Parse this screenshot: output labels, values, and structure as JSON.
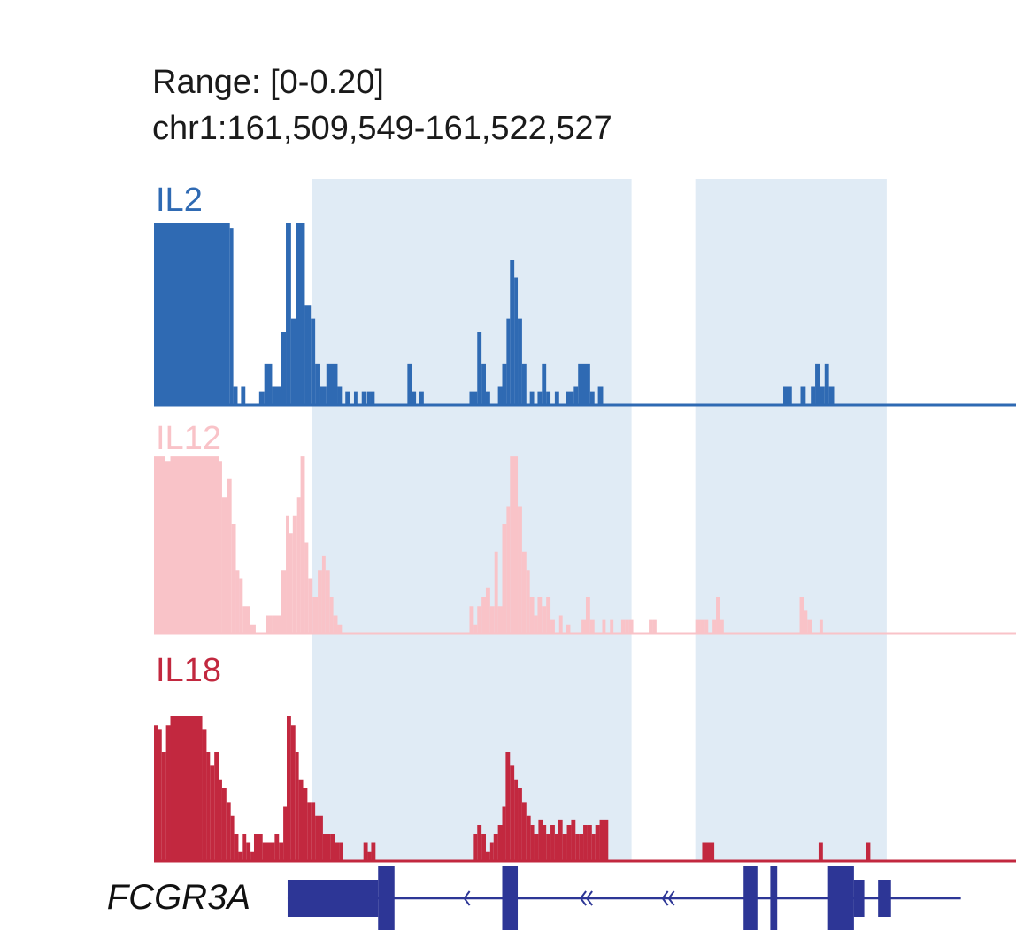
{
  "chart_data": {
    "type": "bar",
    "subtype": "genome-browser-coverage-tracks",
    "range_label": "Range: [0-0.20]",
    "locus_label": "chr1:161,509,549-161,522,527",
    "ylim": [
      0,
      0.2
    ],
    "highlight_regions": [
      [
        0.183,
        0.554
      ],
      [
        0.628,
        0.85
      ]
    ],
    "tracks": [
      {
        "name": "IL2",
        "color": "#2f6ab3",
        "bins": [
          [
            0.0,
            0.088,
            0.2
          ],
          [
            0.088,
            0.092,
            0.195
          ],
          [
            0.092,
            0.097,
            0.02
          ],
          [
            0.101,
            0.106,
            0.02
          ],
          [
            0.122,
            0.128,
            0.015
          ],
          [
            0.128,
            0.137,
            0.045
          ],
          [
            0.137,
            0.147,
            0.02
          ],
          [
            0.147,
            0.153,
            0.08
          ],
          [
            0.153,
            0.159,
            0.2
          ],
          [
            0.159,
            0.165,
            0.095
          ],
          [
            0.165,
            0.175,
            0.2
          ],
          [
            0.175,
            0.182,
            0.11
          ],
          [
            0.182,
            0.187,
            0.095
          ],
          [
            0.187,
            0.193,
            0.045
          ],
          [
            0.193,
            0.2,
            0.02
          ],
          [
            0.2,
            0.213,
            0.045
          ],
          [
            0.213,
            0.218,
            0.02
          ],
          [
            0.222,
            0.227,
            0.015
          ],
          [
            0.232,
            0.236,
            0.015
          ],
          [
            0.241,
            0.246,
            0.015
          ],
          [
            0.247,
            0.251,
            0.015
          ],
          [
            0.251,
            0.256,
            0.015
          ],
          [
            0.294,
            0.299,
            0.045
          ],
          [
            0.299,
            0.304,
            0.015
          ],
          [
            0.308,
            0.313,
            0.015
          ],
          [
            0.366,
            0.375,
            0.015
          ],
          [
            0.375,
            0.38,
            0.08
          ],
          [
            0.38,
            0.385,
            0.045
          ],
          [
            0.385,
            0.39,
            0.015
          ],
          [
            0.399,
            0.404,
            0.02
          ],
          [
            0.404,
            0.409,
            0.045
          ],
          [
            0.409,
            0.413,
            0.095
          ],
          [
            0.413,
            0.418,
            0.16
          ],
          [
            0.418,
            0.422,
            0.14
          ],
          [
            0.422,
            0.427,
            0.095
          ],
          [
            0.427,
            0.432,
            0.045
          ],
          [
            0.436,
            0.441,
            0.015
          ],
          [
            0.445,
            0.45,
            0.015
          ],
          [
            0.45,
            0.455,
            0.045
          ],
          [
            0.455,
            0.46,
            0.015
          ],
          [
            0.465,
            0.47,
            0.015
          ],
          [
            0.478,
            0.487,
            0.015
          ],
          [
            0.487,
            0.492,
            0.02
          ],
          [
            0.492,
            0.506,
            0.045
          ],
          [
            0.506,
            0.511,
            0.015
          ],
          [
            0.515,
            0.521,
            0.02
          ],
          [
            0.73,
            0.74,
            0.02
          ],
          [
            0.75,
            0.756,
            0.02
          ],
          [
            0.762,
            0.767,
            0.02
          ],
          [
            0.767,
            0.773,
            0.045
          ],
          [
            0.773,
            0.778,
            0.02
          ],
          [
            0.778,
            0.783,
            0.045
          ],
          [
            0.783,
            0.789,
            0.02
          ]
        ]
      },
      {
        "name": "IL12",
        "color": "#f9c3c8",
        "bins": [
          [
            0.0,
            0.013,
            0.195
          ],
          [
            0.013,
            0.019,
            0.19
          ],
          [
            0.019,
            0.075,
            0.195
          ],
          [
            0.075,
            0.079,
            0.19
          ],
          [
            0.079,
            0.085,
            0.15
          ],
          [
            0.085,
            0.09,
            0.17
          ],
          [
            0.09,
            0.095,
            0.12
          ],
          [
            0.095,
            0.099,
            0.07
          ],
          [
            0.099,
            0.103,
            0.06
          ],
          [
            0.103,
            0.111,
            0.03
          ],
          [
            0.111,
            0.118,
            0.01
          ],
          [
            0.13,
            0.137,
            0.02
          ],
          [
            0.137,
            0.147,
            0.02
          ],
          [
            0.147,
            0.153,
            0.07
          ],
          [
            0.153,
            0.157,
            0.13
          ],
          [
            0.157,
            0.161,
            0.11
          ],
          [
            0.161,
            0.166,
            0.13
          ],
          [
            0.166,
            0.17,
            0.15
          ],
          [
            0.17,
            0.175,
            0.195
          ],
          [
            0.175,
            0.179,
            0.1
          ],
          [
            0.179,
            0.184,
            0.06
          ],
          [
            0.184,
            0.19,
            0.04
          ],
          [
            0.19,
            0.195,
            0.07
          ],
          [
            0.195,
            0.199,
            0.085
          ],
          [
            0.199,
            0.204,
            0.07
          ],
          [
            0.204,
            0.208,
            0.04
          ],
          [
            0.208,
            0.213,
            0.02
          ],
          [
            0.213,
            0.218,
            0.01
          ],
          [
            0.366,
            0.371,
            0.03
          ],
          [
            0.371,
            0.375,
            0.01
          ],
          [
            0.375,
            0.38,
            0.03
          ],
          [
            0.38,
            0.385,
            0.04
          ],
          [
            0.385,
            0.39,
            0.05
          ],
          [
            0.39,
            0.395,
            0.03
          ],
          [
            0.395,
            0.399,
            0.09
          ],
          [
            0.399,
            0.404,
            0.03
          ],
          [
            0.404,
            0.409,
            0.12
          ],
          [
            0.409,
            0.413,
            0.14
          ],
          [
            0.413,
            0.422,
            0.195
          ],
          [
            0.422,
            0.427,
            0.14
          ],
          [
            0.427,
            0.432,
            0.09
          ],
          [
            0.432,
            0.436,
            0.07
          ],
          [
            0.436,
            0.441,
            0.04
          ],
          [
            0.441,
            0.445,
            0.02
          ],
          [
            0.445,
            0.45,
            0.04
          ],
          [
            0.45,
            0.455,
            0.03
          ],
          [
            0.455,
            0.46,
            0.04
          ],
          [
            0.46,
            0.465,
            0.015
          ],
          [
            0.47,
            0.474,
            0.02
          ],
          [
            0.478,
            0.483,
            0.01
          ],
          [
            0.496,
            0.501,
            0.015
          ],
          [
            0.501,
            0.506,
            0.04
          ],
          [
            0.506,
            0.511,
            0.015
          ],
          [
            0.52,
            0.524,
            0.015
          ],
          [
            0.529,
            0.533,
            0.015
          ],
          [
            0.542,
            0.547,
            0.015
          ],
          [
            0.547,
            0.551,
            0.015
          ],
          [
            0.551,
            0.556,
            0.015
          ],
          [
            0.574,
            0.579,
            0.015
          ],
          [
            0.579,
            0.583,
            0.015
          ],
          [
            0.628,
            0.634,
            0.015
          ],
          [
            0.634,
            0.639,
            0.015
          ],
          [
            0.639,
            0.643,
            0.015
          ],
          [
            0.648,
            0.652,
            0.015
          ],
          [
            0.652,
            0.657,
            0.04
          ],
          [
            0.657,
            0.661,
            0.015
          ],
          [
            0.749,
            0.754,
            0.04
          ],
          [
            0.754,
            0.758,
            0.025
          ],
          [
            0.758,
            0.763,
            0.015
          ],
          [
            0.772,
            0.776,
            0.015
          ]
        ]
      },
      {
        "name": "IL18",
        "color": "#c2283f",
        "bins": [
          [
            0.0,
            0.005,
            0.15
          ],
          [
            0.005,
            0.009,
            0.145
          ],
          [
            0.009,
            0.014,
            0.12
          ],
          [
            0.014,
            0.019,
            0.15
          ],
          [
            0.019,
            0.056,
            0.16
          ],
          [
            0.056,
            0.061,
            0.145
          ],
          [
            0.061,
            0.065,
            0.12
          ],
          [
            0.065,
            0.07,
            0.105
          ],
          [
            0.07,
            0.075,
            0.12
          ],
          [
            0.075,
            0.079,
            0.09
          ],
          [
            0.079,
            0.084,
            0.08
          ],
          [
            0.084,
            0.089,
            0.065
          ],
          [
            0.089,
            0.093,
            0.05
          ],
          [
            0.093,
            0.098,
            0.03
          ],
          [
            0.098,
            0.103,
            0.01
          ],
          [
            0.103,
            0.107,
            0.03
          ],
          [
            0.107,
            0.112,
            0.02
          ],
          [
            0.112,
            0.116,
            0.01
          ],
          [
            0.116,
            0.121,
            0.03
          ],
          [
            0.121,
            0.126,
            0.03
          ],
          [
            0.126,
            0.13,
            0.02
          ],
          [
            0.13,
            0.135,
            0.02
          ],
          [
            0.135,
            0.14,
            0.02
          ],
          [
            0.14,
            0.145,
            0.03
          ],
          [
            0.145,
            0.15,
            0.02
          ],
          [
            0.15,
            0.154,
            0.06
          ],
          [
            0.154,
            0.159,
            0.16
          ],
          [
            0.159,
            0.164,
            0.15
          ],
          [
            0.164,
            0.168,
            0.12
          ],
          [
            0.168,
            0.173,
            0.09
          ],
          [
            0.173,
            0.178,
            0.08
          ],
          [
            0.178,
            0.182,
            0.065
          ],
          [
            0.182,
            0.187,
            0.065
          ],
          [
            0.187,
            0.192,
            0.05
          ],
          [
            0.192,
            0.196,
            0.05
          ],
          [
            0.196,
            0.201,
            0.03
          ],
          [
            0.201,
            0.205,
            0.03
          ],
          [
            0.205,
            0.21,
            0.03
          ],
          [
            0.21,
            0.215,
            0.02
          ],
          [
            0.215,
            0.219,
            0.02
          ],
          [
            0.243,
            0.248,
            0.02
          ],
          [
            0.248,
            0.252,
            0.01
          ],
          [
            0.252,
            0.257,
            0.02
          ],
          [
            0.371,
            0.375,
            0.03
          ],
          [
            0.375,
            0.38,
            0.04
          ],
          [
            0.38,
            0.385,
            0.03
          ],
          [
            0.385,
            0.39,
            0.01
          ],
          [
            0.39,
            0.394,
            0.02
          ],
          [
            0.394,
            0.399,
            0.03
          ],
          [
            0.399,
            0.404,
            0.04
          ],
          [
            0.404,
            0.408,
            0.06
          ],
          [
            0.408,
            0.413,
            0.12
          ],
          [
            0.413,
            0.418,
            0.105
          ],
          [
            0.418,
            0.422,
            0.09
          ],
          [
            0.422,
            0.427,
            0.08
          ],
          [
            0.427,
            0.432,
            0.065
          ],
          [
            0.432,
            0.437,
            0.05
          ],
          [
            0.437,
            0.441,
            0.04
          ],
          [
            0.441,
            0.446,
            0.03
          ],
          [
            0.446,
            0.451,
            0.045
          ],
          [
            0.451,
            0.455,
            0.04
          ],
          [
            0.455,
            0.46,
            0.03
          ],
          [
            0.46,
            0.465,
            0.04
          ],
          [
            0.465,
            0.469,
            0.03
          ],
          [
            0.469,
            0.474,
            0.045
          ],
          [
            0.474,
            0.479,
            0.03
          ],
          [
            0.479,
            0.484,
            0.04
          ],
          [
            0.484,
            0.489,
            0.045
          ],
          [
            0.489,
            0.493,
            0.03
          ],
          [
            0.493,
            0.498,
            0.03
          ],
          [
            0.498,
            0.503,
            0.04
          ],
          [
            0.503,
            0.508,
            0.04
          ],
          [
            0.508,
            0.512,
            0.03
          ],
          [
            0.512,
            0.517,
            0.04
          ],
          [
            0.517,
            0.522,
            0.045
          ],
          [
            0.522,
            0.527,
            0.045
          ],
          [
            0.636,
            0.65,
            0.02
          ],
          [
            0.771,
            0.776,
            0.02
          ],
          [
            0.826,
            0.831,
            0.02
          ]
        ]
      }
    ],
    "gene": {
      "name": "FCGR3A",
      "color": "#2d3696",
      "strand": "-",
      "span": [
        0.155,
        0.936
      ],
      "exons": [
        {
          "start": 0.155,
          "end": 0.26,
          "type": "utr"
        },
        {
          "start": 0.26,
          "end": 0.279,
          "type": "cds"
        },
        {
          "start": 0.404,
          "end": 0.422,
          "type": "cds"
        },
        {
          "start": 0.684,
          "end": 0.7,
          "type": "cds"
        },
        {
          "start": 0.715,
          "end": 0.723,
          "type": "cds"
        },
        {
          "start": 0.782,
          "end": 0.812,
          "type": "cds"
        },
        {
          "start": 0.812,
          "end": 0.824,
          "type": "utr"
        },
        {
          "start": 0.84,
          "end": 0.855,
          "type": "utr"
        }
      ],
      "direction_arrows": [
        {
          "pos": 0.36,
          "count": 1
        },
        {
          "pos": 0.495,
          "count": 2
        },
        {
          "pos": 0.59,
          "count": 2
        }
      ]
    }
  }
}
